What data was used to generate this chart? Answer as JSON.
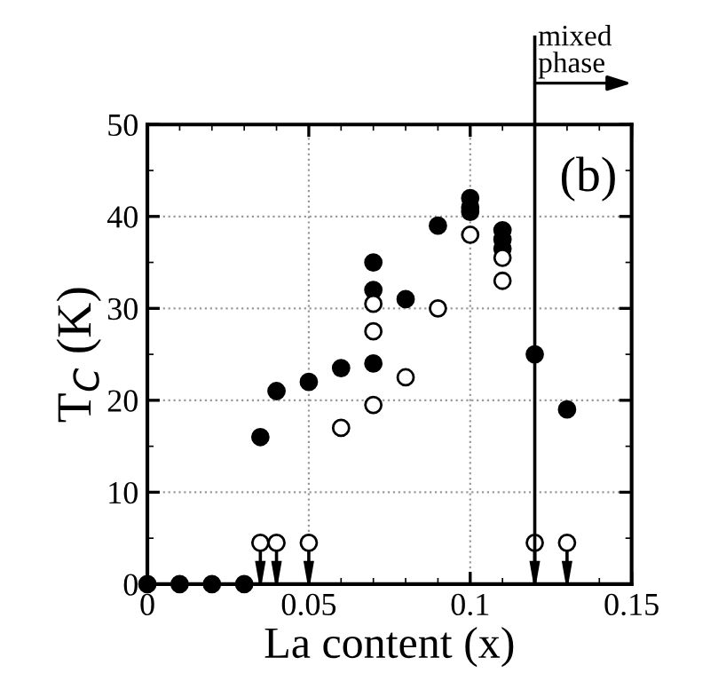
{
  "chart_data": {
    "type": "scatter",
    "xlabel": "La content (x)",
    "ylabel": "T$_{C}$ (K)",
    "xlim": [
      0,
      0.15
    ],
    "ylim": [
      0,
      50
    ],
    "xticks": [
      0,
      0.05,
      0.1,
      0.15
    ],
    "yticks": [
      0,
      10,
      20,
      30,
      40,
      50
    ],
    "grid": true,
    "marker": "circle",
    "series": [
      {
        "color": "#000000",
        "x": [
          0,
          0.01,
          0.02,
          0.03,
          0.035,
          0.04,
          0.05,
          0.06,
          0.07,
          0.07,
          0.07,
          0.08,
          0.09,
          0.1,
          0.1,
          0.1,
          0.11,
          0.11,
          0.11,
          0.12,
          0.13
        ],
        "values": [
          0,
          0,
          0,
          0,
          16,
          21,
          22,
          23.5,
          24,
          32,
          35,
          31,
          39,
          40.5,
          41,
          42,
          36.5,
          37.5,
          38.5,
          25,
          19
        ]
      },
      {
        "color": "#ffffff",
        "x": [
          0.06,
          0.07,
          0.07,
          0.07,
          0.08,
          0.09,
          0.1,
          0.11,
          0.11
        ],
        "values": [
          17,
          19.5,
          27.5,
          30.5,
          22.5,
          30,
          38,
          33,
          35.5
        ]
      },
      {
        "color": "#ffffff",
        "x": [
          0.035,
          0.04,
          0.05,
          0.12,
          0.13
        ],
        "values": [
          4.5,
          4.5,
          4.5,
          4.5,
          4.5
        ],
        "errors": [
          [
            0,
            4.5
          ],
          [
            0,
            4.5
          ],
          [
            0,
            4.5
          ],
          [
            0,
            4.5
          ],
          [
            0,
            4.5
          ]
        ]
      }
    ],
    "ref_lines": [
      {
        "axis": "x",
        "value": 0.12,
        "label": "mixed\nphase"
      }
    ],
    "annotations": [
      "(b)"
    ]
  }
}
